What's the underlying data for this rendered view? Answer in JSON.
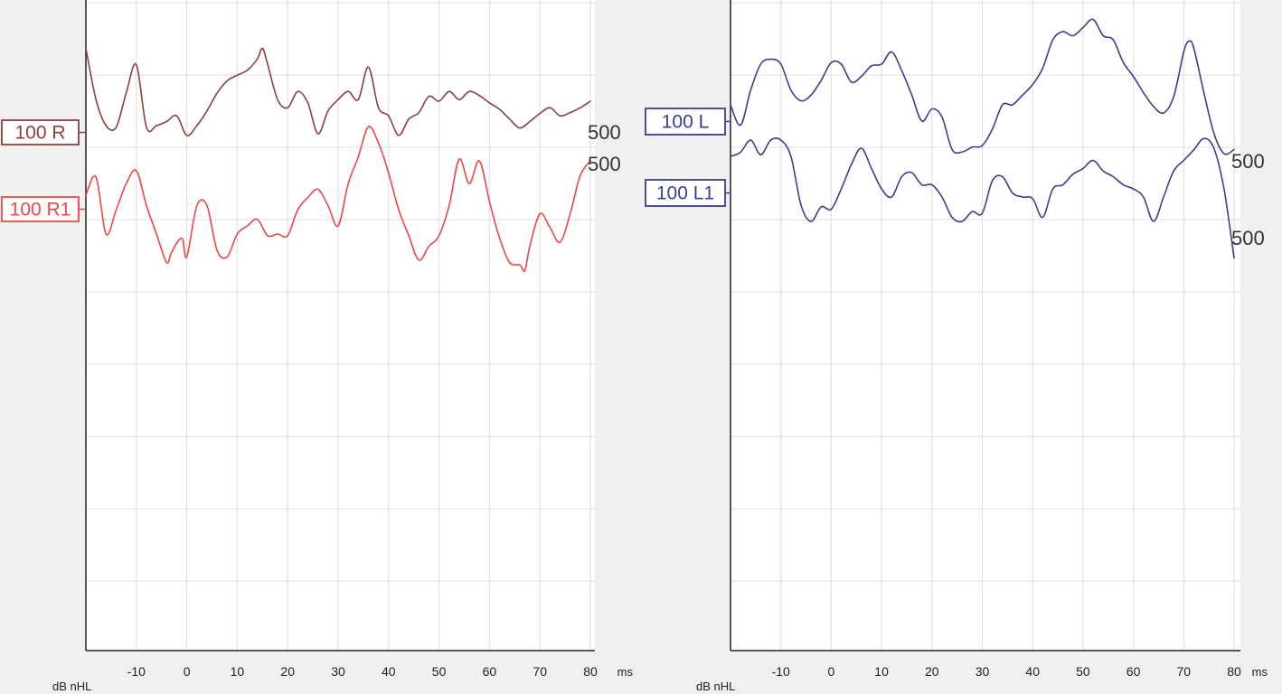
{
  "chart_data": [
    {
      "type": "line",
      "xlim": [
        -20,
        80
      ],
      "x_ticks": [
        "-10",
        "0",
        "10",
        "20",
        "30",
        "40",
        "50",
        "60",
        "70",
        "80"
      ],
      "x_unit": "ms",
      "y_unit": "dB nHL",
      "grid": true,
      "series": [
        {
          "name": "100 R",
          "end_label": "500",
          "color": "#8b4040",
          "x": [
            -20,
            -18,
            -16,
            -14,
            -12,
            -10,
            -8,
            -6,
            -4,
            -2,
            0,
            2,
            4,
            6,
            8,
            10,
            12,
            14,
            15,
            16,
            18,
            20,
            22,
            24,
            26,
            28,
            30,
            32,
            34,
            36,
            38,
            40,
            42,
            44,
            46,
            48,
            50,
            52,
            54,
            56,
            58,
            60,
            62,
            64,
            66,
            68,
            70,
            72,
            74,
            76,
            78,
            80
          ],
          "y": [
            0.85,
            0.22,
            -0.1,
            -0.12,
            0.3,
            0.65,
            -0.12,
            -0.1,
            -0.05,
            0.02,
            -0.22,
            -0.1,
            0.08,
            0.3,
            0.45,
            0.52,
            0.58,
            0.72,
            0.85,
            0.66,
            0.22,
            0.12,
            0.32,
            0.18,
            -0.2,
            0.08,
            0.22,
            0.32,
            0.22,
            0.62,
            0.12,
            0.02,
            -0.22,
            -0.02,
            0.06,
            0.26,
            0.2,
            0.32,
            0.22,
            0.32,
            0.27,
            0.18,
            0.1,
            -0.02,
            -0.13,
            -0.05,
            0.05,
            0.12,
            0.02,
            0.06,
            0.12,
            0.2
          ]
        },
        {
          "name": "100 R1",
          "end_label": "500",
          "color": "#f24545",
          "x": [
            -20,
            -18,
            -16,
            -14,
            -12,
            -10,
            -8,
            -6,
            -4,
            -3,
            -1,
            0,
            2,
            4,
            6,
            8,
            10,
            12,
            14,
            16,
            18,
            20,
            22,
            24,
            26,
            28,
            30,
            32,
            34,
            36,
            38,
            40,
            42,
            44,
            46,
            48,
            50,
            52,
            54,
            56,
            58,
            60,
            62,
            64,
            66,
            67,
            68,
            70,
            72,
            74,
            76,
            78,
            80
          ],
          "y": [
            -0.12,
            0.1,
            -0.6,
            -0.3,
            0.02,
            0.18,
            -0.25,
            -0.6,
            -0.95,
            -0.82,
            -0.65,
            -0.88,
            -0.25,
            -0.25,
            -0.8,
            -0.88,
            -0.6,
            -0.5,
            -0.42,
            -0.62,
            -0.6,
            -0.62,
            -0.3,
            -0.15,
            -0.05,
            -0.25,
            -0.5,
            0.02,
            0.35,
            0.72,
            0.52,
            0.15,
            -0.3,
            -0.62,
            -0.92,
            -0.75,
            -0.62,
            -0.25,
            0.32,
            0.02,
            0.3,
            -0.2,
            -0.65,
            -0.95,
            -0.98,
            -1.05,
            -0.75,
            -0.35,
            -0.52,
            -0.7,
            -0.35,
            0.12,
            0.3
          ]
        }
      ]
    },
    {
      "type": "line",
      "xlim": [
        -20,
        80
      ],
      "x_ticks": [
        "-10",
        "0",
        "10",
        "20",
        "30",
        "40",
        "50",
        "60",
        "70",
        "80"
      ],
      "x_unit": "ms",
      "y_unit": "dB nHL",
      "grid": true,
      "series": [
        {
          "name": "100 L",
          "end_label": "500",
          "color": "#3a3f8f",
          "x": [
            -20,
            -18,
            -16,
            -14,
            -12,
            -10,
            -8,
            -6,
            -4,
            -2,
            0,
            2,
            4,
            6,
            8,
            10,
            12,
            14,
            16,
            18,
            20,
            22,
            24,
            26,
            28,
            30,
            32,
            34,
            36,
            38,
            40,
            42,
            44,
            46,
            48,
            50,
            52,
            54,
            56,
            58,
            60,
            62,
            64,
            66,
            68,
            70,
            71,
            72,
            74,
            76,
            78,
            80
          ],
          "y": [
            0.1,
            -0.15,
            0.28,
            0.6,
            0.66,
            0.6,
            0.28,
            0.15,
            0.22,
            0.4,
            0.62,
            0.6,
            0.38,
            0.45,
            0.58,
            0.6,
            0.75,
            0.52,
            0.22,
            -0.1,
            0.05,
            -0.05,
            -0.45,
            -0.48,
            -0.42,
            -0.4,
            -0.2,
            0.1,
            0.1,
            0.22,
            0.35,
            0.55,
            0.9,
            1.0,
            0.95,
            1.05,
            1.15,
            0.95,
            0.9,
            0.62,
            0.45,
            0.25,
            0.08,
            0.0,
            0.2,
            0.75,
            0.88,
            0.8,
            0.25,
            -0.25,
            -0.5,
            -0.45
          ]
        },
        {
          "name": "100 L1",
          "end_label": "500",
          "color": "#3a3f8f",
          "x": [
            -20,
            -18,
            -16,
            -14,
            -12,
            -10,
            -8,
            -6,
            -4,
            -2,
            0,
            2,
            4,
            6,
            8,
            10,
            12,
            14,
            16,
            18,
            20,
            22,
            24,
            26,
            28,
            30,
            32,
            34,
            36,
            38,
            40,
            42,
            44,
            46,
            48,
            50,
            52,
            54,
            56,
            58,
            60,
            62,
            64,
            66,
            68,
            70,
            72,
            74,
            76,
            78,
            80
          ],
          "y": [
            0.3,
            0.35,
            0.5,
            0.32,
            0.5,
            0.5,
            0.3,
            -0.3,
            -0.5,
            -0.32,
            -0.35,
            -0.1,
            0.2,
            0.4,
            0.15,
            -0.1,
            -0.2,
            0.05,
            0.1,
            -0.05,
            -0.05,
            -0.2,
            -0.45,
            -0.5,
            -0.38,
            -0.4,
            0.0,
            0.05,
            -0.15,
            -0.2,
            -0.22,
            -0.45,
            -0.1,
            -0.05,
            0.08,
            0.15,
            0.25,
            0.12,
            0.05,
            -0.05,
            -0.1,
            -0.2,
            -0.5,
            -0.2,
            0.12,
            0.25,
            0.38,
            0.52,
            0.4,
            -0.1,
            -0.95
          ]
        }
      ]
    }
  ]
}
